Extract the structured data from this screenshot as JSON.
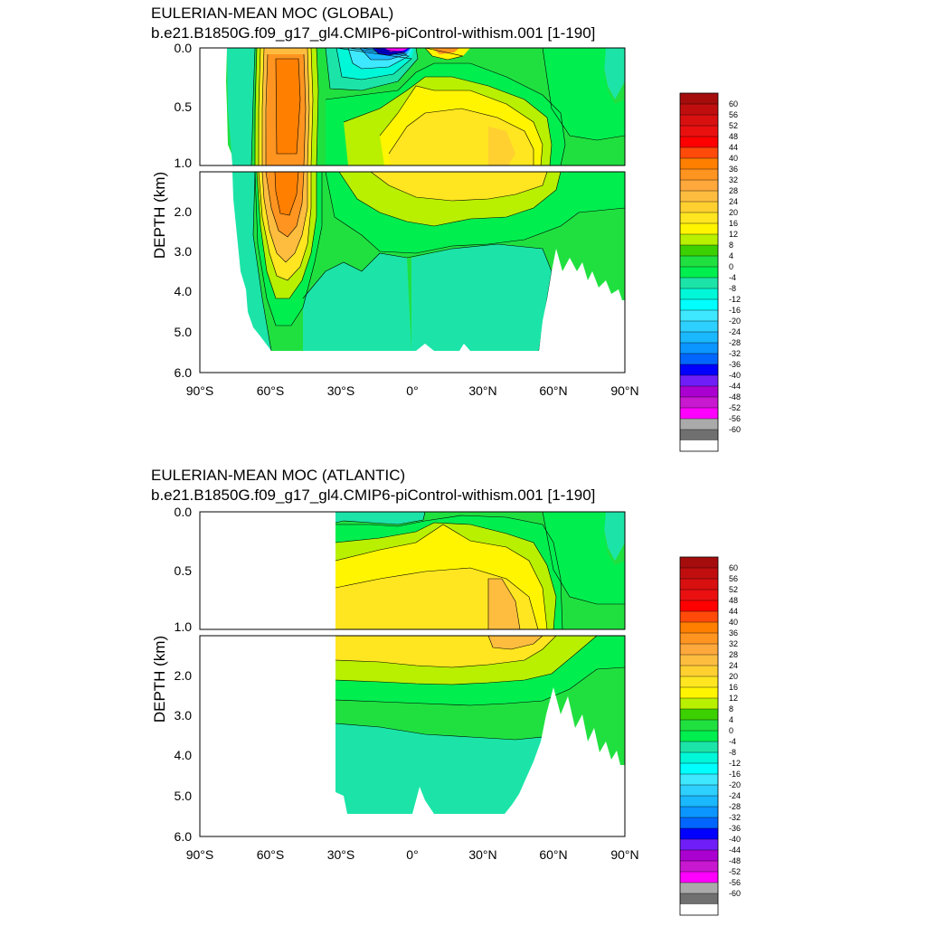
{
  "chart_data": [
    {
      "type": "heatmap",
      "title": "EULERIAN-MEAN MOC (GLOBAL)",
      "subtitle": "b.e21.B1850G.f09_g17_gl4.CMIP6-piControl-withism.001 [1-190]",
      "ylabel": "DEPTH (km)",
      "xlabel": "",
      "xlim": [
        -90,
        90
      ],
      "ylim_upper": [
        0.0,
        1.0
      ],
      "ylim_lower": [
        1.0,
        6.0
      ],
      "yticks_upper": [
        "0.0",
        "0.5",
        "1.0"
      ],
      "yticks_lower": [
        "2.0",
        "3.0",
        "4.0",
        "5.0",
        "6.0"
      ],
      "xticks": [
        "90°S",
        "60°S",
        "30°S",
        "0°",
        "30°N",
        "60°N",
        "90°N"
      ],
      "colorbar_levels": [
        "60",
        "56",
        "52",
        "48",
        "44",
        "40",
        "36",
        "32",
        "28",
        "24",
        "20",
        "16",
        "12",
        "8",
        "4",
        "0",
        "-4",
        "-8",
        "-12",
        "-16",
        "-20",
        "-24",
        "-28",
        "-32",
        "-36",
        "-40",
        "-44",
        "-48",
        "-52",
        "-56",
        "-60"
      ],
      "features": [
        {
          "lat": -50,
          "depth": 0.3,
          "value": 36
        },
        {
          "lat": -50,
          "depth": 2.0,
          "value": 34
        },
        {
          "lat": -5,
          "depth": 0.02,
          "value": -44
        },
        {
          "lat": 10,
          "depth": 0.7,
          "value": 18
        },
        {
          "lat": 35,
          "depth": 0.9,
          "value": 22
        },
        {
          "lat": 20,
          "depth": 4.0,
          "value": -3
        }
      ]
    },
    {
      "type": "heatmap",
      "title": "EULERIAN-MEAN MOC (ATLANTIC)",
      "subtitle": "b.e21.B1850G.f09_g17_gl4.CMIP6-piControl-withism.001 [1-190]",
      "ylabel": "DEPTH (km)",
      "xlabel": "",
      "xlim": [
        -90,
        90
      ],
      "ylim_upper": [
        0.0,
        1.0
      ],
      "ylim_lower": [
        1.0,
        6.0
      ],
      "yticks_upper": [
        "0.0",
        "0.5",
        "1.0"
      ],
      "yticks_lower": [
        "2.0",
        "3.0",
        "4.0",
        "5.0",
        "6.0"
      ],
      "xticks": [
        "90°S",
        "60°S",
        "30°S",
        "0°",
        "30°N",
        "60°N",
        "90°N"
      ],
      "colorbar_levels": [
        "60",
        "56",
        "52",
        "48",
        "44",
        "40",
        "36",
        "32",
        "28",
        "24",
        "20",
        "16",
        "12",
        "8",
        "4",
        "0",
        "-4",
        "-8",
        "-12",
        "-16",
        "-20",
        "-24",
        "-28",
        "-32",
        "-36",
        "-40",
        "-44",
        "-48",
        "-52",
        "-56",
        "-60"
      ],
      "features": [
        {
          "lat": 0,
          "depth": 0.7,
          "value": 20
        },
        {
          "lat": 38,
          "depth": 0.9,
          "value": 26
        },
        {
          "lat": 0,
          "depth": 4.2,
          "value": -3
        },
        {
          "lat": -12,
          "depth": 0.05,
          "value": -2
        }
      ]
    }
  ],
  "colorbar_colors": [
    "#a50d0d",
    "#c00e0e",
    "#d81010",
    "#ea1010",
    "#ff0000",
    "#ff4a0a",
    "#ff7f00",
    "#ff9520",
    "#ffa83c",
    "#ffbd40",
    "#ffd030",
    "#ffe620",
    "#fff500",
    "#b8f000",
    "#3dd000",
    "#20e040",
    "#00ee4e",
    "#1ce4a8",
    "#00f7d8",
    "#00ffff",
    "#3ee8ff",
    "#2ed0ff",
    "#1ab8ff",
    "#0a95ff",
    "#0066ff",
    "#0000ff",
    "#6f1ef8",
    "#aa00d0",
    "#c818d0",
    "#ff00ff",
    "#aaaaaa",
    "#707070",
    "#ffffff"
  ]
}
